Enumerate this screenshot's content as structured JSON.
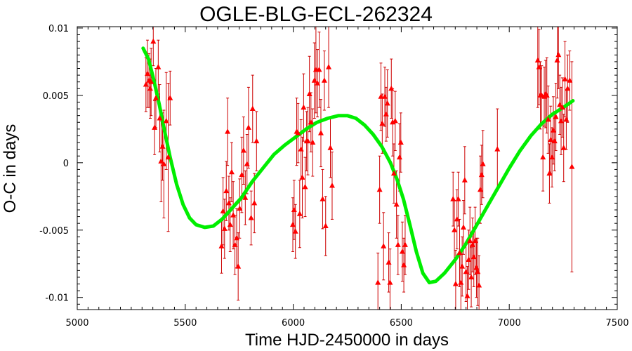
{
  "chart_data": {
    "type": "scatter",
    "title": "OGLE-BLG-ECL-262324",
    "xlabel": "Time HJD-2450000 in days",
    "ylabel": "O-C in days",
    "xlim": [
      5000,
      7500
    ],
    "ylim": [
      -0.0109,
      0.0101
    ],
    "x_ticks": [
      5000,
      5500,
      6000,
      6500,
      7000,
      7500
    ],
    "x_tick_labels": [
      "5000",
      "5500",
      "6000",
      "6500",
      "7000",
      "7500"
    ],
    "y_ticks": [
      -0.01,
      -0.005,
      0,
      0.005,
      0.01
    ],
    "y_tick_labels": [
      "-0.01",
      "-0.005",
      "0",
      "0.005",
      "0.01"
    ],
    "grid": false,
    "legend": "none",
    "colors": {
      "points": "#ff0000",
      "errorbars": "#cc0000",
      "fit": "#00ee00",
      "frame": "#000000"
    },
    "series": [
      {
        "kind": "points_with_errorbars",
        "marker": "triangle",
        "points": [
          {
            "x": 5318,
            "y": 0.0058,
            "err": 0.002
          },
          {
            "x": 5325,
            "y": 0.0066,
            "err": 0.0025
          },
          {
            "x": 5332,
            "y": 0.0061,
            "err": 0.002
          },
          {
            "x": 5338,
            "y": 0.0055,
            "err": 0.0022
          },
          {
            "x": 5342,
            "y": 0.006,
            "err": 0.0025
          },
          {
            "x": 5352,
            "y": 0.009,
            "err": 0.0018
          },
          {
            "x": 5358,
            "y": 0.0026,
            "err": 0.002
          },
          {
            "x": 5364,
            "y": 0.0048,
            "err": 0.0022
          },
          {
            "x": 5375,
            "y": 0.0071,
            "err": 0.002
          },
          {
            "x": 5382,
            "y": 0.0033,
            "err": 0.0025
          },
          {
            "x": 5388,
            "y": 0.0001,
            "err": 0.003
          },
          {
            "x": 5395,
            "y": 0.0012,
            "err": 0.0025
          },
          {
            "x": 5401,
            "y": -0.0001,
            "err": 0.004
          },
          {
            "x": 5412,
            "y": 0.0031,
            "err": 0.0036
          },
          {
            "x": 5421,
            "y": 0.0004,
            "err": 0.0055
          },
          {
            "x": 5430,
            "y": 0.0048,
            "err": 0.002
          },
          {
            "x": 5668,
            "y": -0.0062,
            "err": 0.002
          },
          {
            "x": 5675,
            "y": -0.0036,
            "err": 0.0025
          },
          {
            "x": 5682,
            "y": -0.0049,
            "err": 0.0022
          },
          {
            "x": 5690,
            "y": -0.0021,
            "err": 0.0022
          },
          {
            "x": 5696,
            "y": 0.0023,
            "err": 0.0025
          },
          {
            "x": 5702,
            "y": -0.003,
            "err": 0.002
          },
          {
            "x": 5708,
            "y": -0.0046,
            "err": 0.002
          },
          {
            "x": 5715,
            "y": -0.0007,
            "err": 0.0022
          },
          {
            "x": 5722,
            "y": -0.0039,
            "err": 0.0025
          },
          {
            "x": 5730,
            "y": -0.0061,
            "err": 0.0022
          },
          {
            "x": 5738,
            "y": -0.0056,
            "err": 0.0022
          },
          {
            "x": 5745,
            "y": -0.0077,
            "err": 0.0025
          },
          {
            "x": 5752,
            "y": -0.0034,
            "err": 0.0022
          },
          {
            "x": 5762,
            "y": -0.0009,
            "err": 0.0028
          },
          {
            "x": 5770,
            "y": 0.0009,
            "err": 0.0025
          },
          {
            "x": 5778,
            "y": -0.0026,
            "err": 0.002
          },
          {
            "x": 5786,
            "y": -0.0001,
            "err": 0.0022
          },
          {
            "x": 5793,
            "y": 0.0026,
            "err": 0.003
          },
          {
            "x": 5805,
            "y": -0.0041,
            "err": 0.002
          },
          {
            "x": 5812,
            "y": 0.004,
            "err": 0.0025
          },
          {
            "x": 5820,
            "y": -0.003,
            "err": 0.0022
          },
          {
            "x": 5830,
            "y": 0.0016,
            "err": 0.0022
          },
          {
            "x": 5998,
            "y": -0.0046,
            "err": 0.002
          },
          {
            "x": 6004,
            "y": -0.0035,
            "err": 0.0022
          },
          {
            "x": 6010,
            "y": -0.0051,
            "err": 0.002
          },
          {
            "x": 6016,
            "y": 0.0023,
            "err": 0.0025
          },
          {
            "x": 6022,
            "y": 0.0022,
            "err": 0.0022
          },
          {
            "x": 6030,
            "y": -0.0038,
            "err": 0.0025
          },
          {
            "x": 6036,
            "y": 0.001,
            "err": 0.0022
          },
          {
            "x": 6042,
            "y": -0.0011,
            "err": 0.003
          },
          {
            "x": 6048,
            "y": 0.0041,
            "err": 0.0025
          },
          {
            "x": 6055,
            "y": -0.0018,
            "err": 0.0022
          },
          {
            "x": 6062,
            "y": 0.0016,
            "err": 0.0022
          },
          {
            "x": 6068,
            "y": 0.0016,
            "err": 0.0025
          },
          {
            "x": 6075,
            "y": 0.0051,
            "err": 0.0028
          },
          {
            "x": 6082,
            "y": 0.003,
            "err": 0.0022
          },
          {
            "x": 6090,
            "y": 0.0015,
            "err": 0.0025
          },
          {
            "x": 6098,
            "y": 0.0061,
            "err": 0.0028
          },
          {
            "x": 6105,
            "y": 0.0069,
            "err": 0.0032
          },
          {
            "x": 6112,
            "y": 0.0059,
            "err": 0.0025
          },
          {
            "x": 6120,
            "y": 0.0069,
            "err": 0.0028
          },
          {
            "x": 6128,
            "y": 0.0022,
            "err": 0.0025
          },
          {
            "x": 6136,
            "y": -0.0027,
            "err": 0.0022
          },
          {
            "x": 6144,
            "y": 0.0061,
            "err": 0.0022
          },
          {
            "x": 6150,
            "y": -0.0047,
            "err": 0.0022
          },
          {
            "x": 6164,
            "y": 0.0071,
            "err": 0.003
          },
          {
            "x": 6172,
            "y": 0.0011,
            "err": 0.0022
          },
          {
            "x": 6180,
            "y": -0.0017,
            "err": 0.0025
          },
          {
            "x": 6392,
            "y": -0.0089,
            "err": 0.0022
          },
          {
            "x": 6400,
            "y": -0.002,
            "err": 0.0025
          },
          {
            "x": 6406,
            "y": 0.0049,
            "err": 0.0025
          },
          {
            "x": 6412,
            "y": 0.0029,
            "err": 0.0022
          },
          {
            "x": 6418,
            "y": -0.0062,
            "err": 0.0025
          },
          {
            "x": 6424,
            "y": 0.0049,
            "err": 0.0022
          },
          {
            "x": 6430,
            "y": 0.0036,
            "err": 0.002
          },
          {
            "x": 6436,
            "y": 0.0044,
            "err": 0.0025
          },
          {
            "x": 6442,
            "y": -0.0074,
            "err": 0.0022
          },
          {
            "x": 6448,
            "y": -0.0089,
            "err": 0.0025
          },
          {
            "x": 6454,
            "y": 0.0055,
            "err": 0.0022
          },
          {
            "x": 6460,
            "y": 0.003,
            "err": 0.0025
          },
          {
            "x": 6466,
            "y": -0.0008,
            "err": 0.0022
          },
          {
            "x": 6472,
            "y": 0.0031,
            "err": 0.0022
          },
          {
            "x": 6478,
            "y": -0.0031,
            "err": 0.0025
          },
          {
            "x": 6485,
            "y": -0.0061,
            "err": 0.0022
          },
          {
            "x": 6492,
            "y": 0.0004,
            "err": 0.0025
          },
          {
            "x": 6498,
            "y": 0.0015,
            "err": 0.0022
          },
          {
            "x": 6505,
            "y": -0.0066,
            "err": 0.0022
          },
          {
            "x": 6512,
            "y": -0.0076,
            "err": 0.002
          },
          {
            "x": 6518,
            "y": -0.0061,
            "err": 0.0022
          },
          {
            "x": 6740,
            "y": -0.0027,
            "err": 0.002
          },
          {
            "x": 6746,
            "y": -0.005,
            "err": 0.0022
          },
          {
            "x": 6752,
            "y": -0.009,
            "err": 0.0025
          },
          {
            "x": 6758,
            "y": -0.0042,
            "err": 0.0022
          },
          {
            "x": 6764,
            "y": -0.0027,
            "err": 0.002
          },
          {
            "x": 6770,
            "y": -0.0067,
            "err": 0.0025
          },
          {
            "x": 6776,
            "y": -0.0089,
            "err": 0.0022
          },
          {
            "x": 6782,
            "y": -0.0077,
            "err": 0.0022
          },
          {
            "x": 6788,
            "y": -0.0048,
            "err": 0.002
          },
          {
            "x": 6794,
            "y": -0.0013,
            "err": 0.0025
          },
          {
            "x": 6800,
            "y": -0.0081,
            "err": 0.0022
          },
          {
            "x": 6806,
            "y": -0.0099,
            "err": 0.0022
          },
          {
            "x": 6812,
            "y": -0.0072,
            "err": 0.0022
          },
          {
            "x": 6818,
            "y": -0.0058,
            "err": 0.0025
          },
          {
            "x": 6824,
            "y": -0.0085,
            "err": 0.0022
          },
          {
            "x": 6830,
            "y": -0.0061,
            "err": 0.002
          },
          {
            "x": 6836,
            "y": -0.007,
            "err": 0.0022
          },
          {
            "x": 6842,
            "y": -0.0058,
            "err": 0.0025
          },
          {
            "x": 6848,
            "y": -0.0078,
            "err": 0.0022
          },
          {
            "x": 6854,
            "y": -0.0081,
            "err": 0.0025
          },
          {
            "x": 6860,
            "y": -0.0091,
            "err": 0.0022
          },
          {
            "x": 6866,
            "y": -0.002,
            "err": 0.0025
          },
          {
            "x": 6872,
            "y": -0.0009,
            "err": 0.0022
          },
          {
            "x": 6878,
            "y": -0.0001,
            "err": 0.0025
          },
          {
            "x": 6945,
            "y": 0.001,
            "err": 0.003
          },
          {
            "x": 7132,
            "y": 0.0076,
            "err": 0.0035
          },
          {
            "x": 7138,
            "y": 0.0071,
            "err": 0.0028
          },
          {
            "x": 7144,
            "y": 0.005,
            "err": 0.0025
          },
          {
            "x": 7150,
            "y": 0.005,
            "err": 0.0022
          },
          {
            "x": 7156,
            "y": 0.0004,
            "err": 0.0025
          },
          {
            "x": 7162,
            "y": 0.0049,
            "err": 0.0022
          },
          {
            "x": 7168,
            "y": 0.0051,
            "err": 0.0025
          },
          {
            "x": 7174,
            "y": 0.005,
            "err": 0.0028
          },
          {
            "x": 7180,
            "y": 0.0032,
            "err": 0.0025
          },
          {
            "x": 7186,
            "y": -0.0008,
            "err": 0.0022
          },
          {
            "x": 7192,
            "y": 0.0017,
            "err": 0.0025
          },
          {
            "x": 7198,
            "y": 0.0004,
            "err": 0.0022
          },
          {
            "x": 7204,
            "y": 0.0024,
            "err": 0.0025
          },
          {
            "x": 7210,
            "y": 0.0016,
            "err": 0.0022
          },
          {
            "x": 7216,
            "y": 0.0034,
            "err": 0.0025
          },
          {
            "x": 7222,
            "y": 0.0076,
            "err": 0.0028
          },
          {
            "x": 7228,
            "y": 0.008,
            "err": 0.0025
          },
          {
            "x": 7234,
            "y": 0.0043,
            "err": 0.0022
          },
          {
            "x": 7240,
            "y": 0.0031,
            "err": 0.0025
          },
          {
            "x": 7246,
            "y": 0.0041,
            "err": 0.0022
          },
          {
            "x": 7252,
            "y": 0.0011,
            "err": 0.0025
          },
          {
            "x": 7258,
            "y": 0.0062,
            "err": 0.0028
          },
          {
            "x": 7264,
            "y": 0.0032,
            "err": 0.0022
          },
          {
            "x": 7270,
            "y": 0.0055,
            "err": 0.0025
          },
          {
            "x": 7280,
            "y": 0.0061,
            "err": 0.0022
          },
          {
            "x": 7290,
            "y": -0.0003,
            "err": 0.0078
          }
        ]
      },
      {
        "kind": "fit_line",
        "points": [
          {
            "x": 5305,
            "y": 0.0085
          },
          {
            "x": 5330,
            "y": 0.0077
          },
          {
            "x": 5355,
            "y": 0.0061
          },
          {
            "x": 5380,
            "y": 0.0043
          },
          {
            "x": 5400,
            "y": 0.0027
          },
          {
            "x": 5430,
            "y": 0.0004
          },
          {
            "x": 5460,
            "y": -0.0016
          },
          {
            "x": 5490,
            "y": -0.0031
          },
          {
            "x": 5520,
            "y": -0.0041
          },
          {
            "x": 5550,
            "y": -0.0046
          },
          {
            "x": 5590,
            "y": -0.0048
          },
          {
            "x": 5630,
            "y": -0.0047
          },
          {
            "x": 5670,
            "y": -0.0042
          },
          {
            "x": 5710,
            "y": -0.0035
          },
          {
            "x": 5760,
            "y": -0.0026
          },
          {
            "x": 5810,
            "y": -0.0014
          },
          {
            "x": 5860,
            "y": -0.0004
          },
          {
            "x": 5910,
            "y": 0.0006
          },
          {
            "x": 5960,
            "y": 0.0013
          },
          {
            "x": 6010,
            "y": 0.0019
          },
          {
            "x": 6060,
            "y": 0.0025
          },
          {
            "x": 6110,
            "y": 0.003
          },
          {
            "x": 6160,
            "y": 0.0033
          },
          {
            "x": 6210,
            "y": 0.0035
          },
          {
            "x": 6250,
            "y": 0.0035
          },
          {
            "x": 6290,
            "y": 0.0033
          },
          {
            "x": 6330,
            "y": 0.0028
          },
          {
            "x": 6370,
            "y": 0.0021
          },
          {
            "x": 6410,
            "y": 0.0012
          },
          {
            "x": 6450,
            "y": 0.0
          },
          {
            "x": 6480,
            "y": -0.0012
          },
          {
            "x": 6510,
            "y": -0.0027
          },
          {
            "x": 6540,
            "y": -0.0046
          },
          {
            "x": 6570,
            "y": -0.0066
          },
          {
            "x": 6600,
            "y": -0.0082
          },
          {
            "x": 6630,
            "y": -0.0089
          },
          {
            "x": 6660,
            "y": -0.0088
          },
          {
            "x": 6700,
            "y": -0.0082
          },
          {
            "x": 6750,
            "y": -0.0072
          },
          {
            "x": 6800,
            "y": -0.006
          },
          {
            "x": 6850,
            "y": -0.0046
          },
          {
            "x": 6900,
            "y": -0.0032
          },
          {
            "x": 6950,
            "y": -0.0018
          },
          {
            "x": 7000,
            "y": -0.0004
          },
          {
            "x": 7050,
            "y": 0.0009
          },
          {
            "x": 7100,
            "y": 0.002
          },
          {
            "x": 7150,
            "y": 0.0029
          },
          {
            "x": 7200,
            "y": 0.0036
          },
          {
            "x": 7250,
            "y": 0.0041
          },
          {
            "x": 7295,
            "y": 0.0046
          }
        ]
      }
    ]
  }
}
